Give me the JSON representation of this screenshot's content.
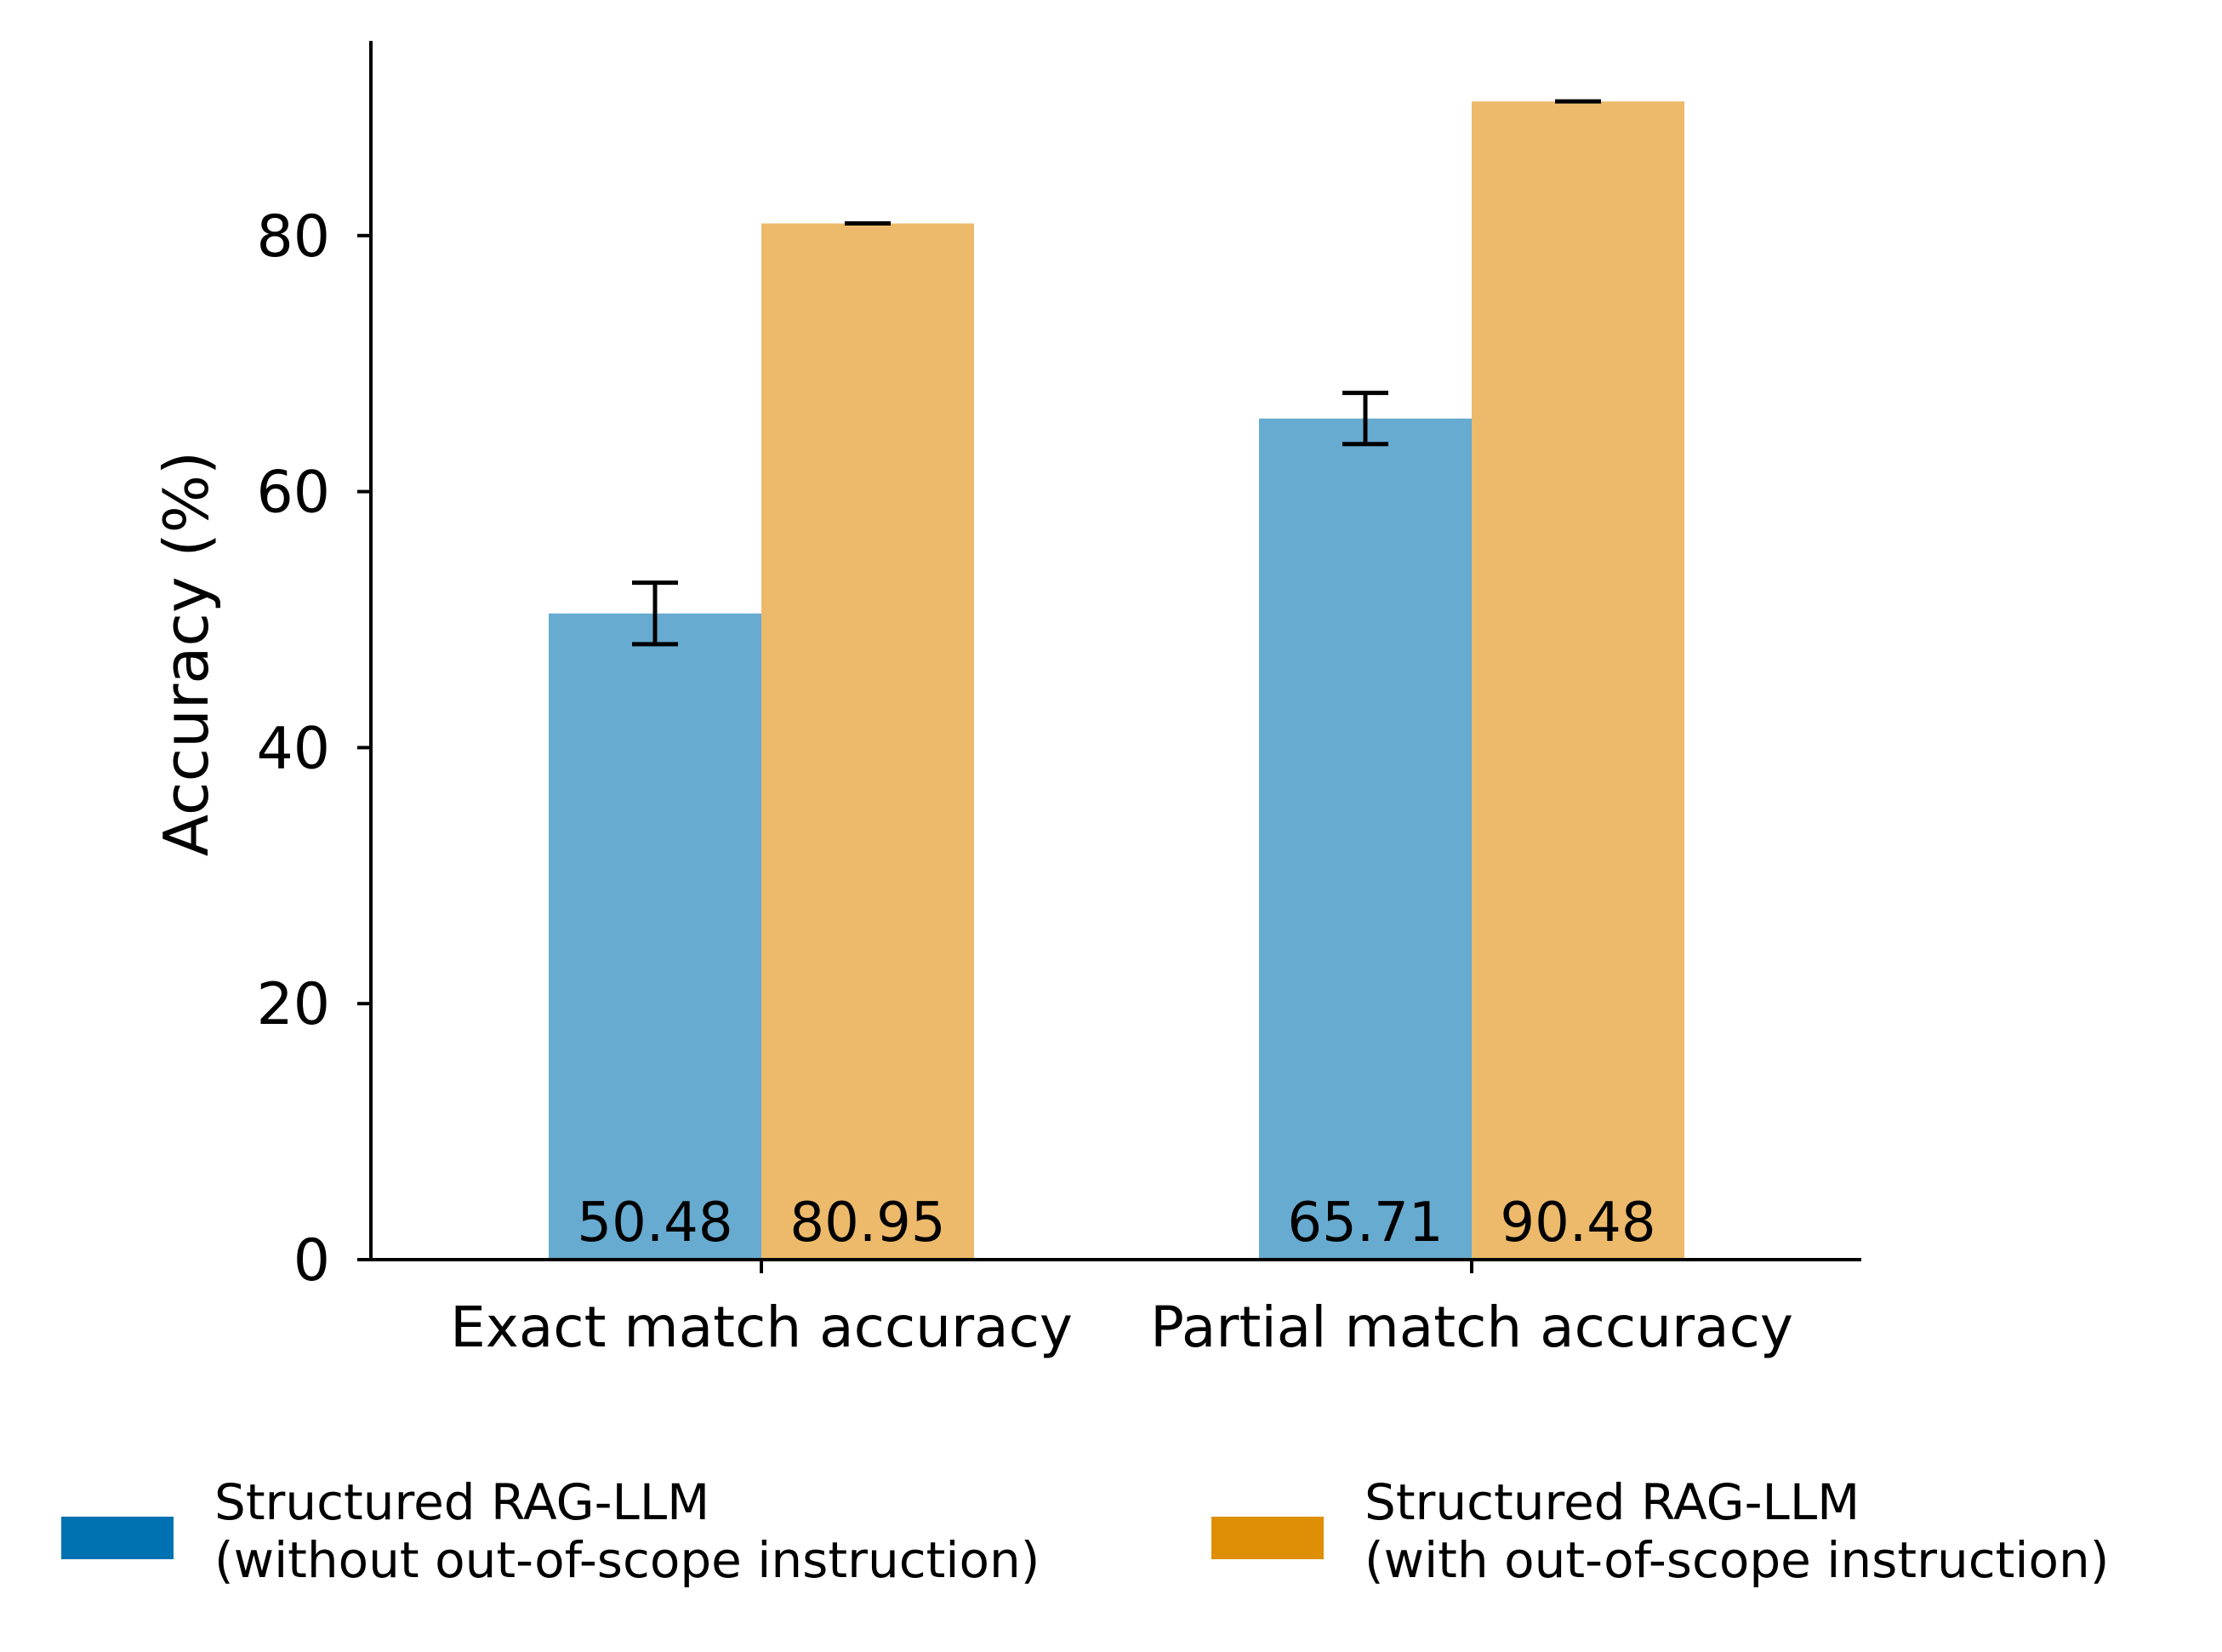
{
  "chart_data": {
    "type": "bar",
    "title": "",
    "xlabel": "",
    "ylabel": "Accuracy (%)",
    "ylim": [
      0,
      95
    ],
    "yticks": [
      0,
      20,
      40,
      60,
      80
    ],
    "ytick_labels": [
      "0",
      "20",
      "40",
      "60",
      "80"
    ],
    "categories": [
      "Exact match accuracy",
      "Partial match accuracy"
    ],
    "grid": false,
    "legend_position": "bottom",
    "series": [
      {
        "name": "Structured RAG-LLM\n(without out-of-scope instruction)",
        "legend_lines": [
          "Structured RAG-LLM",
          "(without out-of-scope instruction)"
        ],
        "values": [
          50.48,
          65.71
        ],
        "value_labels": [
          "50.48",
          "65.71"
        ],
        "errors": [
          2.4,
          2.0
        ],
        "color": "#67abd0",
        "legend_color": "#0072b2"
      },
      {
        "name": "Structured RAG-LLM\n(with out-of-scope instruction)",
        "legend_lines": [
          "Structured RAG-LLM",
          "(with out-of-scope instruction)"
        ],
        "values": [
          80.95,
          90.48
        ],
        "value_labels": [
          "80.95",
          "90.48"
        ],
        "errors": [
          0,
          0
        ],
        "color": "#ecba6a",
        "legend_color": "#de8f05"
      }
    ]
  }
}
